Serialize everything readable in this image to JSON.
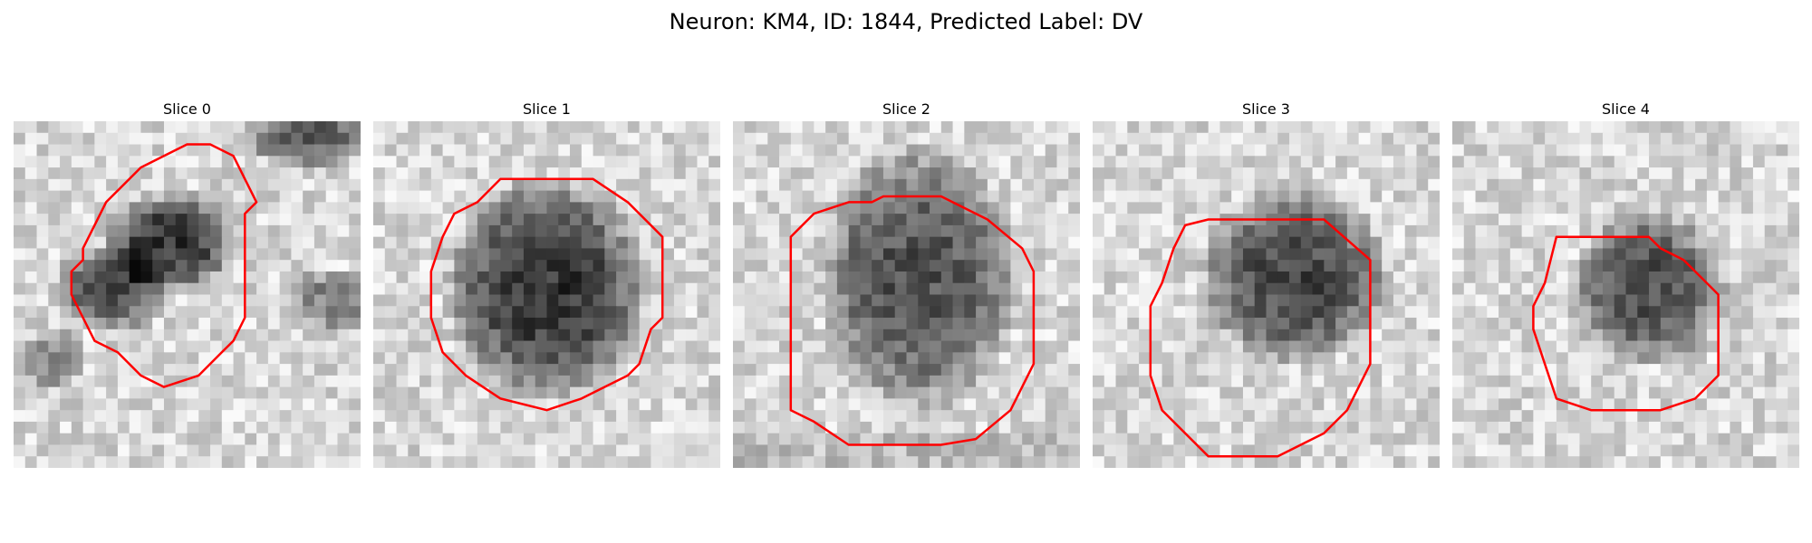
{
  "figure": {
    "title": "Neuron: KM4, ID: 1844, Predicted Label: DV"
  },
  "panels": [
    {
      "label": "Slice 0",
      "contour_color": "#ff0000",
      "texture": "dark elongated blob left-center, dark band top-right"
    },
    {
      "label": "Slice 1",
      "contour_color": "#ff0000",
      "texture": "dark round blob centered"
    },
    {
      "label": "Slice 2",
      "contour_color": "#ff0000",
      "texture": "dark square blob centered"
    },
    {
      "label": "Slice 3",
      "contour_color": "#ff0000",
      "texture": "dark blob upper-center"
    },
    {
      "label": "Slice 4",
      "contour_color": "#ff0000",
      "texture": "smaller dark blob centered"
    }
  ]
}
